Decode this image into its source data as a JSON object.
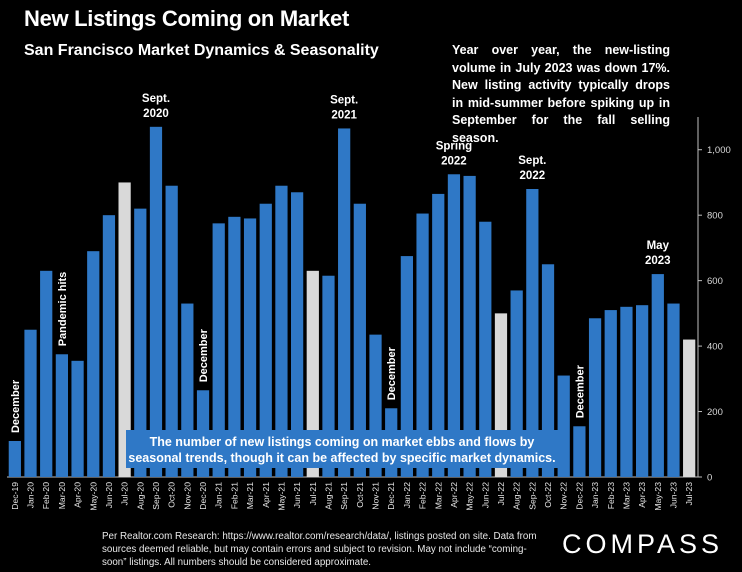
{
  "header": {
    "title": "New Listings Coming on Market",
    "subtitle": "San Francisco Market Dynamics & Seasonality",
    "note": "Year over year, the new-listing volume in July 2023 was down 17%. New listing activity typically drops in mid-summer before spiking up in September for the fall selling season."
  },
  "callout": "The number of new listings coming on market ebbs and flows by seasonal trends, though it can be affected by specific market dynamics.",
  "footer": {
    "source": "Per Realtor.com Research: https://www.realtor.com/research/data/, listings posted on site. Data from sources deemed reliable, but may contain errors and subject to revision. May not include “coming-soon” listings. All numbers should be considered approximate.",
    "logo": "COMPASS"
  },
  "colors": {
    "blue": "#2f78c6",
    "highlight": "#d9d9d9",
    "background": "#000000"
  },
  "chart_data": {
    "type": "bar",
    "categories": [
      "Dec-19",
      "Jan-20",
      "Feb-20",
      "Mar-20",
      "Apr-20",
      "May-20",
      "Jun-20",
      "Jul-20",
      "Aug-20",
      "Sep-20",
      "Oct-20",
      "Nov-20",
      "Dec-20",
      "Jan-21",
      "Feb-21",
      "Mar-21",
      "Apr-21",
      "May-21",
      "Jun-21",
      "Jul-21",
      "Aug-21",
      "Sep-21",
      "Oct-21",
      "Nov-21",
      "Dec-21",
      "Jan-22",
      "Feb-22",
      "Mar-22",
      "Apr-22",
      "May-22",
      "Jun-22",
      "Jul-22",
      "Aug-22",
      "Sep-22",
      "Oct-22",
      "Nov-22",
      "Dec-22",
      "Jan-23",
      "Feb-23",
      "Mar-23",
      "Apr-23",
      "May-23",
      "Jun-23",
      "Jul-23"
    ],
    "values": [
      110,
      450,
      630,
      375,
      355,
      690,
      800,
      900,
      820,
      1070,
      890,
      530,
      265,
      775,
      795,
      790,
      835,
      890,
      870,
      630,
      615,
      1065,
      835,
      435,
      210,
      675,
      805,
      865,
      925,
      920,
      780,
      500,
      570,
      880,
      650,
      310,
      155,
      485,
      510,
      520,
      525,
      620,
      530,
      420
    ],
    "highlighted": [
      "Jul-20",
      "Jul-21",
      "Jul-22",
      "Jul-23"
    ],
    "ylim": [
      0,
      1100
    ],
    "yticks": [
      0,
      200,
      400,
      600,
      800,
      1000
    ],
    "ytick_labels": [
      "0",
      "200",
      "400",
      "600",
      "800",
      "1,000"
    ],
    "annotations": [
      {
        "category": "Sep-20",
        "lines": [
          "Sept.",
          "2020"
        ]
      },
      {
        "category": "Sep-21",
        "lines": [
          "Sept.",
          "2021"
        ]
      },
      {
        "category": "Apr-22",
        "lines": [
          "Spring",
          "2022"
        ]
      },
      {
        "category": "Sep-22",
        "lines": [
          "Sept.",
          "2022"
        ]
      },
      {
        "category": "May-23",
        "lines": [
          "May",
          "2023"
        ]
      }
    ],
    "vertical_labels": [
      {
        "category": "Dec-19",
        "text": "December"
      },
      {
        "category": "Mar-20",
        "text": "Pandemic hits"
      },
      {
        "category": "Dec-20",
        "text": "December"
      },
      {
        "category": "Dec-21",
        "text": "December"
      },
      {
        "category": "Dec-22",
        "text": "December"
      }
    ]
  }
}
